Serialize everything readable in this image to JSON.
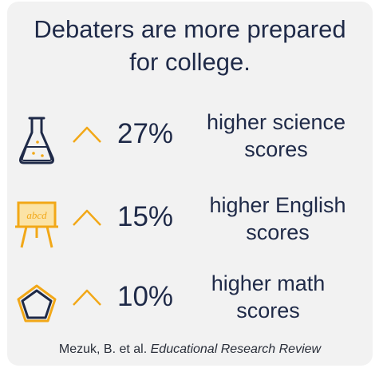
{
  "title": {
    "line1": "Debaters are more prepared",
    "line2": "for college."
  },
  "stats": [
    {
      "icon": "flask-icon",
      "percent": "27%",
      "line1": "higher science",
      "line2": "scores"
    },
    {
      "icon": "easel-icon",
      "percent": "15%",
      "line1": "higher English",
      "line2": "scores",
      "easel_text": "abcd"
    },
    {
      "icon": "pentagon-icon",
      "percent": "10%",
      "line1": "higher math",
      "line2": "scores"
    }
  ],
  "citation": {
    "authors": "Mezuk, B. et al.",
    "journal": "Educational Research Review"
  },
  "colors": {
    "text": "#1f2a48",
    "accent": "#f2a818",
    "background": "#f2f2f2"
  }
}
